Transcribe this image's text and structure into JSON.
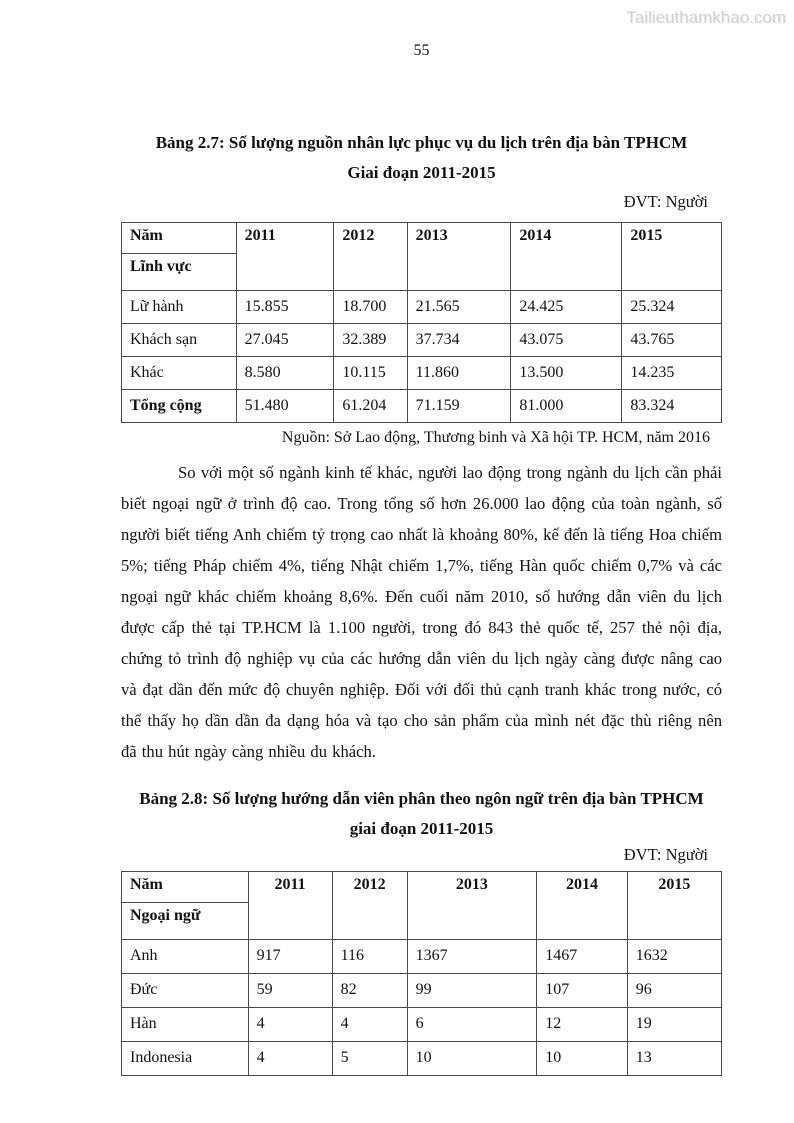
{
  "watermark": "Tailieuthamkhao.com",
  "page_number": "55",
  "table1": {
    "title_line1": "Bảng 2.7: Số lượng nguồn nhân lực phục vụ du lịch trên địa bàn TPHCM",
    "title_line2": "Giai đoạn 2011-2015",
    "unit_label": "ĐVT: Người",
    "corner_top": "Năm",
    "corner_bottom": "Lĩnh vực",
    "years": [
      "2011",
      "2012",
      "2013",
      "2014",
      "2015"
    ],
    "rows": [
      {
        "label": "Lữ hành",
        "values": [
          "15.855",
          "18.700",
          "21.565",
          "24.425",
          "25.324"
        ]
      },
      {
        "label": "Khách sạn",
        "values": [
          "27.045",
          "32.389",
          "37.734",
          "43.075",
          "43.765"
        ]
      },
      {
        "label": "Khác",
        "values": [
          "8.580",
          "10.115",
          "11.860",
          "13.500",
          "14.235"
        ]
      },
      {
        "label": "Tổng cộng",
        "values": [
          "51.480",
          "61.204",
          "71.159",
          "81.000",
          "83.324"
        ],
        "bold": true
      }
    ],
    "source": "Nguồn: Sở Lao động, Thương binh và Xã hội TP. HCM, năm 2016"
  },
  "paragraph": "So với một số ngành kinh tế khác, người lao động trong ngành du lịch cần phải biết ngoại ngữ ở trình độ cao. Trong tổng số hơn 26.000 lao động của toàn ngành, số người biết tiếng Anh chiếm tỷ trọng cao nhất là khoảng 80%, kế đến là tiếng Hoa chiếm 5%; tiếng Pháp chiếm 4%, tiếng Nhật chiếm 1,7%, tiếng Hàn quốc chiếm 0,7% và các ngoại ngữ khác chiếm khoảng 8,6%. Đến cuối năm 2010, số hướng dẫn viên du lịch được cấp thẻ tại TP.HCM là 1.100 người, trong đó 843 thẻ quốc tế, 257 thẻ nội địa, chứng tỏ trình độ nghiệp vụ của các hướng dẫn viên du lịch ngày càng được nâng cao và đạt dần đến mức độ chuyên nghiệp. Đối với đối thủ cạnh tranh khác trong nước, có thể thấy họ dần dần đa dạng hóa và tạo cho sản phẩm của mình nét đặc thù riêng nên đã thu hút ngày càng nhiều du khách.",
  "table2": {
    "title_line1": "Bảng 2.8: Số lượng hướng dẫn viên phân theo ngôn ngữ trên địa bàn TPHCM",
    "title_line2": "giai đoạn 2011-2015",
    "unit_label": "ĐVT: Người",
    "corner_top": "Năm",
    "corner_bottom": "Ngoại ngữ",
    "years": [
      "2011",
      "2012",
      "2013",
      "2014",
      "2015"
    ],
    "rows": [
      {
        "label": "Anh",
        "values": [
          "917",
          "116",
          "1367",
          "1467",
          "1632"
        ]
      },
      {
        "label": "Đức",
        "values": [
          "59",
          "82",
          "99",
          "107",
          "96"
        ]
      },
      {
        "label": "Hàn",
        "values": [
          "4",
          "4",
          "6",
          "12",
          "19"
        ]
      },
      {
        "label": "Indonesia",
        "values": [
          "4",
          "5",
          "10",
          "10",
          "13"
        ]
      }
    ]
  }
}
